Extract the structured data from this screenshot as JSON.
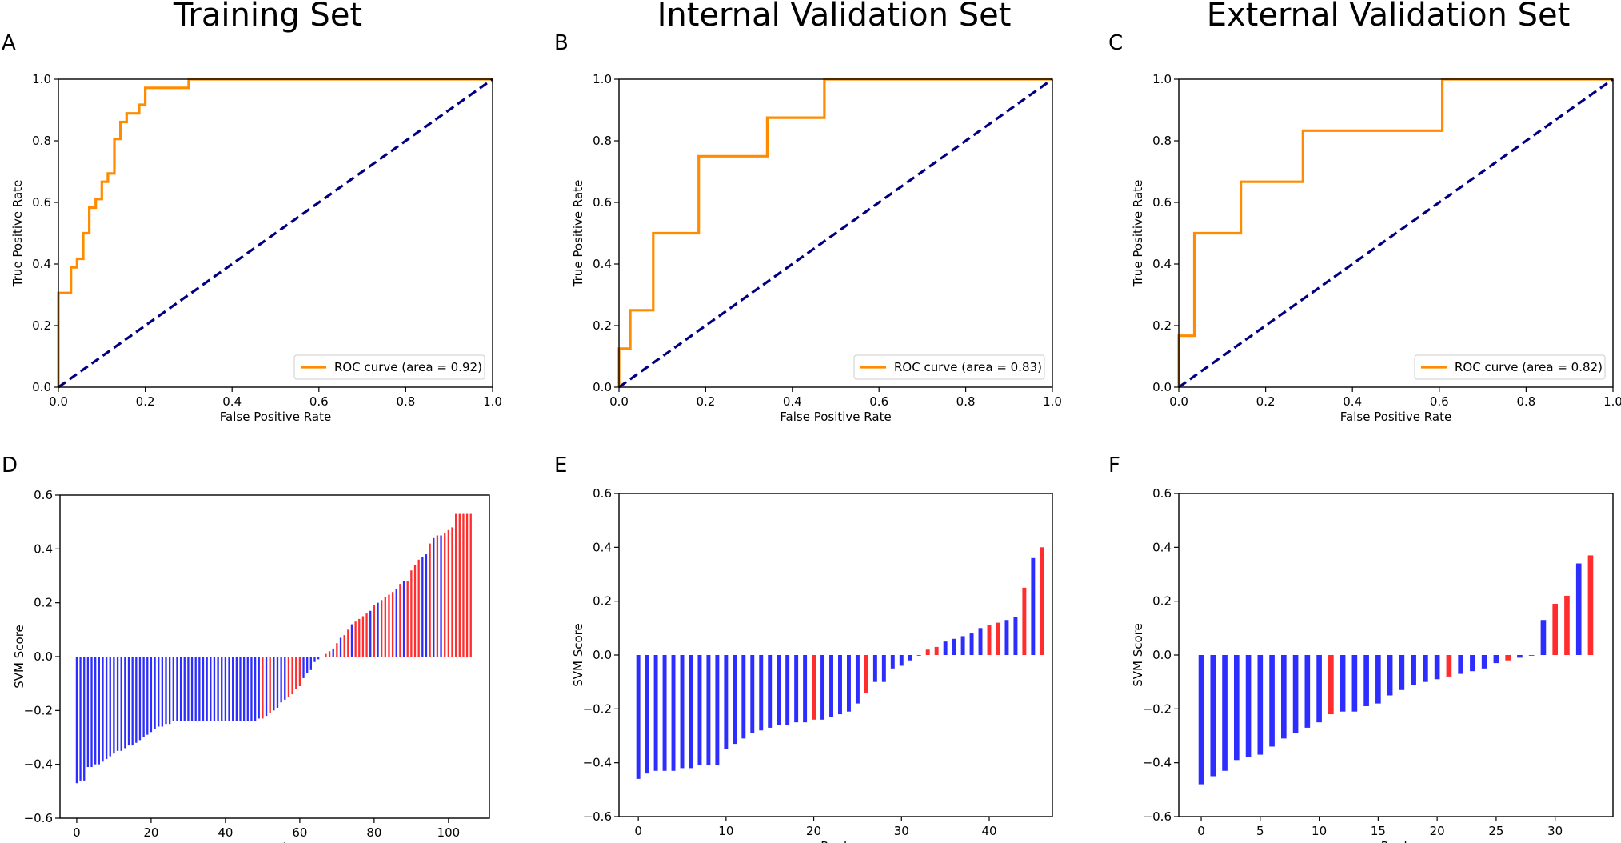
{
  "colors": {
    "roc": "#ff8c00",
    "diagonal": "#000080",
    "positive": "#ff2d2d",
    "negative": "#2d2dff",
    "axis": "#000000"
  },
  "column_titles": [
    "Training Set",
    "Internal Validation Set",
    "External Validation Set"
  ],
  "chart_data": [
    {
      "id": "A",
      "type": "line",
      "panel_label": "A",
      "title": "Training Set",
      "xlabel": "False Positive Rate",
      "ylabel": "True Positive Rate",
      "xlim": [
        0,
        1
      ],
      "ylim": [
        0,
        1
      ],
      "xticks": [
        0,
        0.2,
        0.4,
        0.6,
        0.8,
        1
      ],
      "xtick_labels": [
        "0.0",
        "0.2",
        "0.4",
        "0.6",
        "0.8",
        "1.0"
      ],
      "yticks": [
        0,
        0.2,
        0.4,
        0.6,
        0.8,
        1
      ],
      "ytick_labels": [
        "0.0",
        "0.2",
        "0.4",
        "0.6",
        "0.8",
        "1.0"
      ],
      "legend_label": "ROC curve (area = 0.92)",
      "legend_position": "lower-right",
      "series": [
        {
          "name": "ROC curve",
          "style": "step",
          "x": [
            0,
            0,
            0.029,
            0.029,
            0.043,
            0.043,
            0.057,
            0.057,
            0.071,
            0.071,
            0.086,
            0.086,
            0.1,
            0.1,
            0.114,
            0.114,
            0.129,
            0.129,
            0.143,
            0.143,
            0.157,
            0.157,
            0.186,
            0.186,
            0.2,
            0.2,
            0.3,
            0.3,
            1
          ],
          "y": [
            0,
            0.306,
            0.306,
            0.389,
            0.389,
            0.417,
            0.417,
            0.5,
            0.5,
            0.583,
            0.583,
            0.611,
            0.611,
            0.667,
            0.667,
            0.694,
            0.694,
            0.806,
            0.806,
            0.861,
            0.861,
            0.889,
            0.889,
            0.917,
            0.917,
            0.972,
            0.972,
            1,
            1
          ]
        },
        {
          "name": "Chance",
          "style": "dashed",
          "x": [
            0,
            1
          ],
          "y": [
            0,
            1
          ]
        }
      ]
    },
    {
      "id": "B",
      "type": "line",
      "panel_label": "B",
      "title": "Internal Validation Set",
      "xlabel": "False Positive Rate",
      "ylabel": "True Positive Rate",
      "xlim": [
        0,
        1
      ],
      "ylim": [
        0,
        1
      ],
      "xticks": [
        0,
        0.2,
        0.4,
        0.6,
        0.8,
        1
      ],
      "xtick_labels": [
        "0.0",
        "0.2",
        "0.4",
        "0.6",
        "0.8",
        "1.0"
      ],
      "yticks": [
        0,
        0.2,
        0.4,
        0.6,
        0.8,
        1
      ],
      "ytick_labels": [
        "0.0",
        "0.2",
        "0.4",
        "0.6",
        "0.8",
        "1.0"
      ],
      "legend_label": "ROC curve (area = 0.83)",
      "legend_position": "lower-right",
      "series": [
        {
          "name": "ROC curve",
          "style": "step",
          "x": [
            0,
            0,
            0.026,
            0.026,
            0.079,
            0.079,
            0.184,
            0.184,
            0.342,
            0.342,
            0.474,
            0.474,
            1
          ],
          "y": [
            0,
            0.125,
            0.125,
            0.25,
            0.25,
            0.5,
            0.5,
            0.75,
            0.75,
            0.875,
            0.875,
            1,
            1
          ]
        },
        {
          "name": "Chance",
          "style": "dashed",
          "x": [
            0,
            1
          ],
          "y": [
            0,
            1
          ]
        }
      ]
    },
    {
      "id": "C",
      "type": "line",
      "panel_label": "C",
      "title": "External Validation Set",
      "xlabel": "False Positive Rate",
      "ylabel": "True Positive Rate",
      "xlim": [
        0,
        1
      ],
      "ylim": [
        0,
        1
      ],
      "xticks": [
        0,
        0.2,
        0.4,
        0.6,
        0.8,
        1
      ],
      "xtick_labels": [
        "0.0",
        "0.2",
        "0.4",
        "0.6",
        "0.8",
        "1.0"
      ],
      "yticks": [
        0,
        0.2,
        0.4,
        0.6,
        0.8,
        1
      ],
      "ytick_labels": [
        "0.0",
        "0.2",
        "0.4",
        "0.6",
        "0.8",
        "1.0"
      ],
      "legend_label": "ROC curve (area = 0.82)",
      "legend_position": "lower-right",
      "series": [
        {
          "name": "ROC curve",
          "style": "step",
          "x": [
            0,
            0,
            0.036,
            0.036,
            0.143,
            0.143,
            0.286,
            0.286,
            0.607,
            0.607,
            1
          ],
          "y": [
            0,
            0.167,
            0.167,
            0.5,
            0.5,
            0.667,
            0.667,
            0.833,
            0.833,
            1,
            1
          ]
        },
        {
          "name": "Chance",
          "style": "dashed",
          "x": [
            0,
            1
          ],
          "y": [
            0,
            1
          ]
        }
      ]
    },
    {
      "id": "D",
      "type": "bar",
      "panel_label": "D",
      "xlabel": "Rank",
      "ylabel": "SVM Score",
      "xlim": [
        -4.5,
        111
      ],
      "ylim": [
        -0.6,
        0.6
      ],
      "xticks": [
        0,
        20,
        40,
        60,
        80,
        100
      ],
      "xtick_labels": [
        "0",
        "20",
        "40",
        "60",
        "80",
        "100"
      ],
      "yticks": [
        -0.6,
        -0.4,
        -0.2,
        0,
        0.2,
        0.4,
        0.6
      ],
      "ytick_labels": [
        "−0.6",
        "−0.4",
        "−0.2",
        "0.0",
        "0.2",
        "0.4",
        "0.6"
      ],
      "bar_width": 0.5,
      "values": [
        -0.47,
        -0.46,
        -0.46,
        -0.41,
        -0.41,
        -0.4,
        -0.4,
        -0.39,
        -0.38,
        -0.37,
        -0.36,
        -0.35,
        -0.35,
        -0.34,
        -0.33,
        -0.33,
        -0.32,
        -0.31,
        -0.3,
        -0.29,
        -0.28,
        -0.27,
        -0.26,
        -0.26,
        -0.25,
        -0.25,
        -0.24,
        -0.24,
        -0.24,
        -0.24,
        -0.24,
        -0.24,
        -0.24,
        -0.24,
        -0.24,
        -0.24,
        -0.24,
        -0.24,
        -0.24,
        -0.24,
        -0.24,
        -0.24,
        -0.24,
        -0.24,
        -0.24,
        -0.24,
        -0.24,
        -0.24,
        -0.24,
        -0.23,
        -0.23,
        -0.22,
        -0.21,
        -0.2,
        -0.19,
        -0.17,
        -0.16,
        -0.15,
        -0.14,
        -0.12,
        -0.11,
        -0.08,
        -0.06,
        -0.05,
        -0.02,
        -0.01,
        0.0,
        0.01,
        0.02,
        0.03,
        0.05,
        0.07,
        0.08,
        0.1,
        0.12,
        0.13,
        0.14,
        0.15,
        0.16,
        0.17,
        0.19,
        0.2,
        0.21,
        0.22,
        0.23,
        0.24,
        0.25,
        0.27,
        0.28,
        0.28,
        0.32,
        0.34,
        0.36,
        0.37,
        0.38,
        0.42,
        0.44,
        0.45,
        0.45,
        0.46,
        0.47,
        0.48,
        0.53,
        0.53,
        0.53,
        0.53,
        0.53
      ],
      "classes": [
        "n",
        "n",
        "n",
        "n",
        "n",
        "n",
        "n",
        "n",
        "n",
        "n",
        "n",
        "n",
        "n",
        "n",
        "n",
        "n",
        "n",
        "n",
        "n",
        "n",
        "n",
        "n",
        "n",
        "n",
        "n",
        "n",
        "n",
        "n",
        "n",
        "n",
        "n",
        "n",
        "n",
        "n",
        "n",
        "n",
        "n",
        "n",
        "n",
        "n",
        "n",
        "n",
        "n",
        "n",
        "n",
        "n",
        "n",
        "n",
        "n",
        "n",
        "p",
        "n",
        "p",
        "n",
        "n",
        "n",
        "n",
        "p",
        "p",
        "p",
        "p",
        "n",
        "n",
        "n",
        "n",
        "n",
        "p",
        "p",
        "p",
        "n",
        "p",
        "n",
        "p",
        "p",
        "n",
        "p",
        "p",
        "p",
        "p",
        "n",
        "p",
        "n",
        "p",
        "p",
        "p",
        "p",
        "n",
        "p",
        "n",
        "p",
        "p",
        "p",
        "p",
        "n",
        "n",
        "p",
        "n",
        "p",
        "n",
        "p",
        "p",
        "p",
        "p",
        "p",
        "p",
        "p",
        "p"
      ]
    },
    {
      "id": "E",
      "type": "bar",
      "panel_label": "E",
      "xlabel": "Rank",
      "ylabel": "SVM Score",
      "xlim": [
        -2.2,
        47.2
      ],
      "ylim": [
        -0.6,
        0.6
      ],
      "xticks": [
        0,
        10,
        20,
        30,
        40
      ],
      "xtick_labels": [
        "0",
        "10",
        "20",
        "30",
        "40"
      ],
      "yticks": [
        -0.6,
        -0.4,
        -0.2,
        0,
        0.2,
        0.4,
        0.6
      ],
      "ytick_labels": [
        "−0.6",
        "−0.4",
        "−0.2",
        "0.0",
        "0.2",
        "0.4",
        "0.6"
      ],
      "bar_width": 0.45,
      "values": [
        -0.46,
        -0.44,
        -0.43,
        -0.43,
        -0.43,
        -0.42,
        -0.42,
        -0.41,
        -0.41,
        -0.41,
        -0.35,
        -0.33,
        -0.31,
        -0.29,
        -0.28,
        -0.27,
        -0.26,
        -0.26,
        -0.25,
        -0.25,
        -0.24,
        -0.24,
        -0.23,
        -0.22,
        -0.21,
        -0.18,
        -0.14,
        -0.1,
        -0.1,
        -0.05,
        -0.04,
        -0.02,
        0.0,
        0.02,
        0.03,
        0.05,
        0.06,
        0.07,
        0.08,
        0.1,
        0.11,
        0.12,
        0.13,
        0.14,
        0.25,
        0.36,
        0.4
      ],
      "classes": [
        "n",
        "n",
        "n",
        "n",
        "n",
        "n",
        "n",
        "n",
        "n",
        "n",
        "n",
        "n",
        "n",
        "n",
        "n",
        "n",
        "n",
        "n",
        "n",
        "n",
        "p",
        "n",
        "n",
        "n",
        "n",
        "n",
        "p",
        "n",
        "n",
        "n",
        "n",
        "n",
        "n",
        "p",
        "p",
        "n",
        "n",
        "n",
        "n",
        "n",
        "p",
        "p",
        "n",
        "n",
        "p",
        "n",
        "p"
      ]
    },
    {
      "id": "F",
      "type": "bar",
      "panel_label": "F",
      "xlabel": "Rank",
      "ylabel": "SVM Score",
      "xlim": [
        -1.9,
        34.9
      ],
      "ylim": [
        -0.6,
        0.6
      ],
      "xticks": [
        0,
        5,
        10,
        15,
        20,
        25,
        30
      ],
      "xtick_labels": [
        "0",
        "5",
        "10",
        "15",
        "20",
        "25",
        "30"
      ],
      "yticks": [
        -0.6,
        -0.4,
        -0.2,
        0,
        0.2,
        0.4,
        0.6
      ],
      "ytick_labels": [
        "−0.6",
        "−0.4",
        "−0.2",
        "0.0",
        "0.2",
        "0.4",
        "0.6"
      ],
      "bar_width": 0.45,
      "values": [
        -0.48,
        -0.45,
        -0.43,
        -0.39,
        -0.38,
        -0.37,
        -0.34,
        -0.31,
        -0.29,
        -0.27,
        -0.25,
        -0.22,
        -0.21,
        -0.21,
        -0.19,
        -0.18,
        -0.15,
        -0.13,
        -0.11,
        -0.1,
        -0.09,
        -0.08,
        -0.07,
        -0.06,
        -0.05,
        -0.03,
        -0.02,
        -0.01,
        0.0,
        0.13,
        0.19,
        0.22,
        0.34,
        0.37
      ],
      "classes": [
        "n",
        "n",
        "n",
        "n",
        "n",
        "n",
        "n",
        "n",
        "n",
        "n",
        "n",
        "p",
        "n",
        "n",
        "n",
        "n",
        "n",
        "n",
        "n",
        "n",
        "n",
        "p",
        "n",
        "n",
        "n",
        "n",
        "p",
        "n",
        "n",
        "n",
        "p",
        "p",
        "n",
        "p"
      ]
    }
  ]
}
